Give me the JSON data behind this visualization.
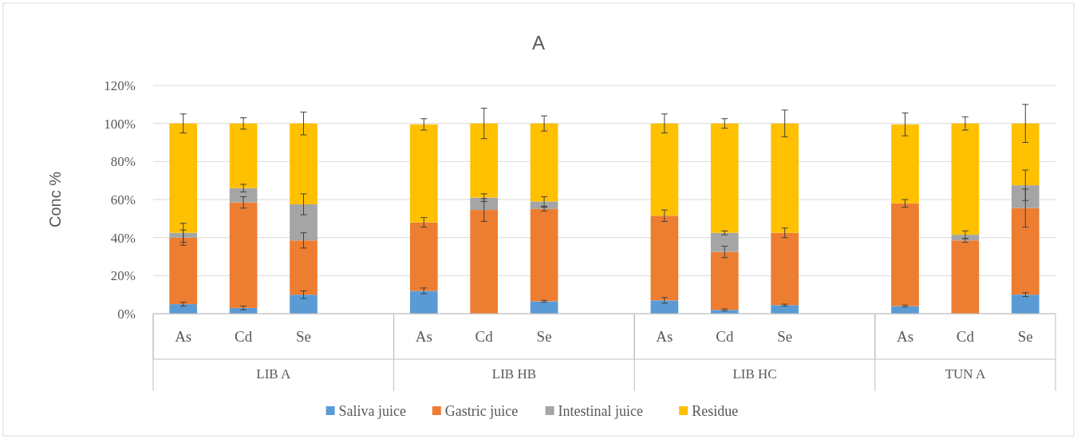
{
  "chart_data": {
    "type": "bar",
    "title": "A",
    "ylabel": "Conc %",
    "stacked": true,
    "grid": "y",
    "legend": "bottom",
    "categories": [
      "As",
      "Cd",
      "Se",
      null,
      "As",
      "Cd",
      "Se",
      null,
      "As",
      "Cd",
      "Se",
      null,
      "As",
      "Cd",
      "Se"
    ],
    "annotations": [
      "LIB A",
      "LIB HB",
      "LIB HC",
      "TUN A"
    ],
    "ylim": [
      0,
      120
    ],
    "yticks": [
      {
        "value": 0,
        "label": "0%"
      },
      {
        "value": 20,
        "label": "20%"
      },
      {
        "value": 40,
        "label": "40%"
      },
      {
        "value": 60,
        "label": "60%"
      },
      {
        "value": 80,
        "label": "80%"
      },
      {
        "value": 100,
        "label": "100%"
      },
      {
        "value": 120,
        "label": "120%"
      }
    ],
    "series": [
      {
        "name": "Saliva juice",
        "color": "#5b9bd5",
        "values": [
          5,
          3,
          10,
          null,
          12,
          0,
          6.5,
          null,
          7,
          2,
          4.5,
          null,
          4,
          0,
          10
        ],
        "errors": [
          1,
          1,
          2,
          null,
          1.5,
          null,
          0.5,
          null,
          1.5,
          0.5,
          0.5,
          null,
          0.5,
          null,
          1
        ]
      },
      {
        "name": "Gastric juice",
        "color": "#ed7d31",
        "values": [
          35,
          55.5,
          28.5,
          null,
          36,
          54.5,
          48.5,
          null,
          44.5,
          30.5,
          38,
          null,
          54,
          38.5,
          45.5
        ],
        "errors": [
          4,
          3,
          4,
          null,
          2.5,
          6,
          1,
          null,
          3,
          3,
          2.5,
          null,
          2,
          1,
          10
        ]
      },
      {
        "name": "Intestinal juice",
        "color": "#a5a5a5",
        "values": [
          2.5,
          7.5,
          19,
          null,
          null,
          6.5,
          4,
          null,
          0,
          10,
          0,
          null,
          null,
          3,
          12
        ],
        "errors": [
          5,
          2,
          5.5,
          null,
          null,
          2,
          2.5,
          null,
          null,
          1,
          null,
          null,
          null,
          2,
          8
        ]
      },
      {
        "name": "Residue",
        "color": "#ffc000",
        "values": [
          57.5,
          34,
          42.5,
          null,
          51.5,
          39,
          41,
          null,
          48.5,
          57.5,
          57.5,
          null,
          41.5,
          58.5,
          32.5
        ],
        "errors": [
          5,
          3,
          6,
          null,
          3,
          8,
          4,
          null,
          5,
          2.5,
          7,
          null,
          6,
          3.5,
          10
        ]
      }
    ]
  }
}
